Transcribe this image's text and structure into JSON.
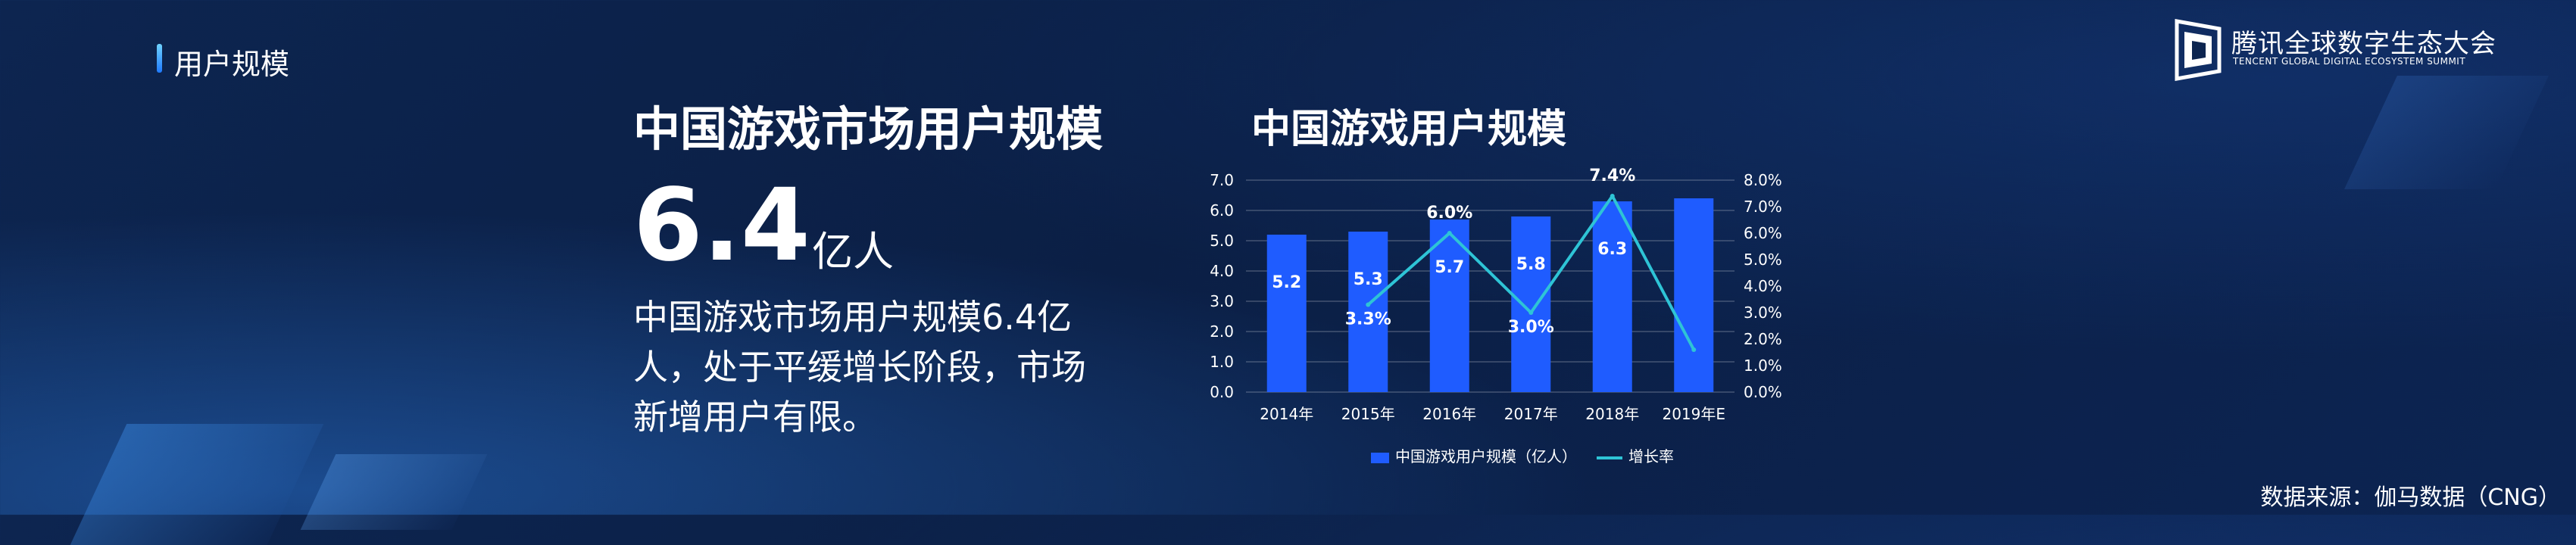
{
  "header": {
    "section_label": "用户规模",
    "logo_title": "腾讯全球数字生态大会",
    "logo_subtitle": "TENCENT GLOBAL DIGITAL ECOSYSTEM SUMMIT"
  },
  "summary": {
    "title": "中国游戏市场用户规模",
    "value": "6.4",
    "unit": "亿人",
    "description": "中国游戏市场用户规模6.4亿人，处于平缓增长阶段，市场新增用户有限。"
  },
  "source": "数据来源：伽马数据（CNG）",
  "colors": {
    "bar": "#1f5cff",
    "line": "#2ec4d6",
    "background": "#0d2550"
  },
  "chart_data": {
    "type": "bar",
    "title": "中国游戏用户规模",
    "categories": [
      "2014年",
      "2015年",
      "2016年",
      "2017年",
      "2018年",
      "2019年E"
    ],
    "series": [
      {
        "name": "中国游戏用户规模（亿人）",
        "type": "bar",
        "axis": "left",
        "values": [
          5.2,
          5.3,
          5.7,
          5.8,
          6.3,
          6.4
        ],
        "labels": [
          "5.2",
          "5.3",
          "5.7",
          "5.8",
          "6.3",
          ""
        ]
      },
      {
        "name": "增长率",
        "type": "line",
        "axis": "right",
        "values": [
          null,
          3.3,
          6.0,
          3.0,
          7.4,
          1.6
        ],
        "labels": [
          "",
          "3.3%",
          "6.0%",
          "3.0%",
          "7.4%",
          ""
        ]
      }
    ],
    "left_axis": {
      "min": 0,
      "max": 7,
      "step": 1,
      "tick_labels": [
        "0.0",
        "1.0",
        "2.0",
        "3.0",
        "4.0",
        "5.0",
        "6.0",
        "7.0"
      ]
    },
    "right_axis": {
      "min": 0,
      "max": 8,
      "step": 1,
      "tick_labels": [
        "0.0%",
        "1.0%",
        "2.0%",
        "3.0%",
        "4.0%",
        "5.0%",
        "6.0%",
        "7.0%",
        "8.0%"
      ]
    },
    "grid": true,
    "legend_position": "bottom"
  }
}
